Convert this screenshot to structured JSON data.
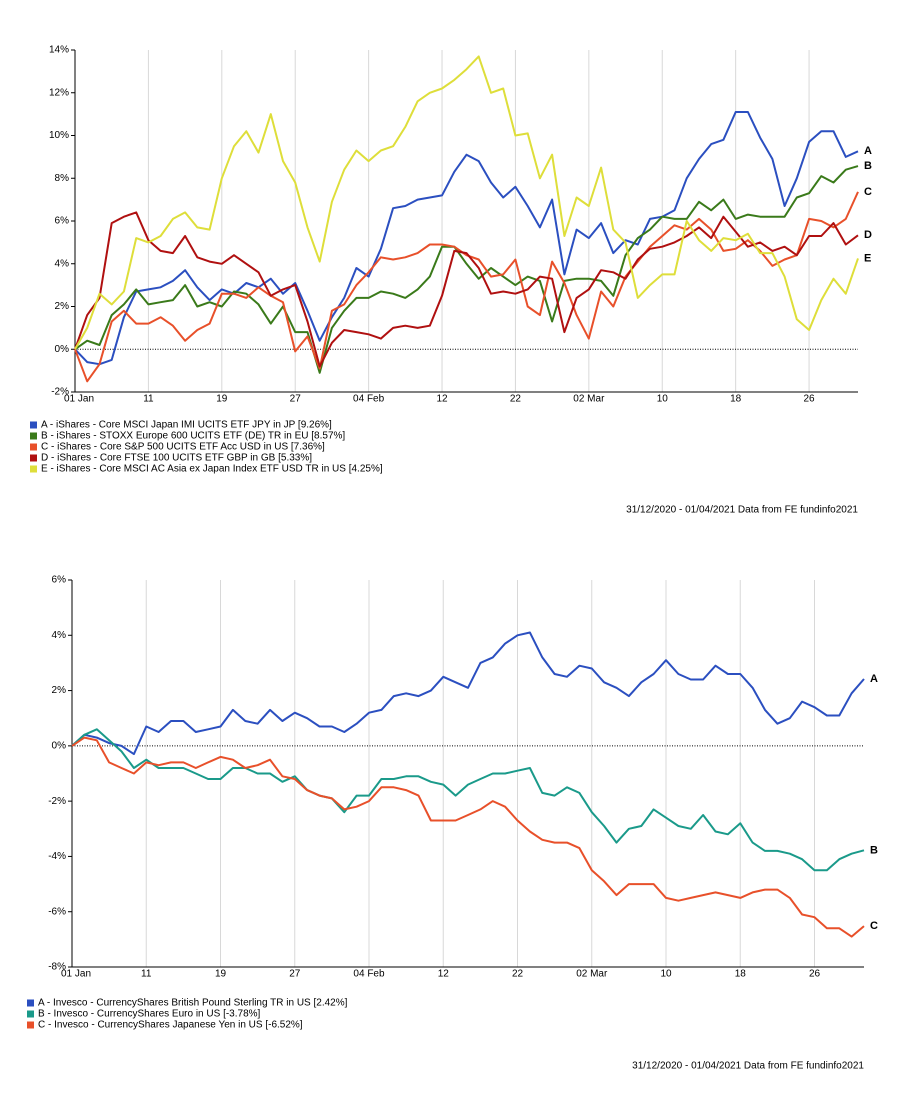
{
  "chart_data": [
    {
      "type": "line",
      "categories": [
        "01 Jan",
        null,
        null,
        null,
        null,
        null,
        "11",
        null,
        null,
        null,
        null,
        null,
        "19",
        null,
        null,
        null,
        null,
        null,
        "27",
        null,
        null,
        null,
        null,
        null,
        "04 Feb",
        null,
        null,
        null,
        null,
        null,
        "12",
        null,
        null,
        null,
        null,
        null,
        "22",
        null,
        null,
        null,
        null,
        null,
        "02 Mar",
        null,
        null,
        null,
        null,
        null,
        "10",
        null,
        null,
        null,
        null,
        null,
        "18",
        null,
        null,
        null,
        null,
        null,
        "26",
        null,
        null,
        null,
        null
      ],
      "ylim": [
        -2,
        14
      ],
      "yticks": [
        {
          "value": -2,
          "label": "-2%"
        },
        {
          "value": 0,
          "label": "0%"
        },
        {
          "value": 2,
          "label": "2%"
        },
        {
          "value": 4,
          "label": "4%"
        },
        {
          "value": 6,
          "label": "6%"
        },
        {
          "value": 8,
          "label": "8%"
        },
        {
          "value": 10,
          "label": "10%"
        },
        {
          "value": 12,
          "label": "12%"
        },
        {
          "value": 14,
          "label": "14%"
        }
      ],
      "grid": "x",
      "zero_line": true,
      "source": "31/12/2020 - 01/04/2021 Data from FE fundinfo2021",
      "series": [
        {
          "name": "A - iShares - Core MSCI Japan IMI UCITS ETF JPY in JP [9.26%]",
          "end_label": "A",
          "color": "#2b4fc0",
          "values": [
            0,
            -0.6,
            -0.7,
            -0.5,
            1.5,
            2.7,
            2.8,
            2.9,
            3.2,
            3.7,
            2.9,
            2.3,
            2.8,
            2.6,
            3.1,
            2.9,
            3.3,
            2.6,
            3.1,
            1.8,
            0.4,
            1.5,
            2.4,
            3.8,
            3.4,
            4.7,
            6.6,
            6.7,
            7.0,
            7.1,
            7.2,
            8.3,
            9.1,
            8.8,
            7.8,
            7.1,
            7.6,
            6.7,
            5.7,
            7.0,
            3.5,
            5.6,
            5.2,
            5.9,
            4.5,
            5.1,
            4.9,
            6.1,
            6.2,
            6.5,
            8.0,
            8.9,
            9.6,
            9.8,
            11.1,
            11.1,
            9.9,
            8.9,
            6.7,
            8.0,
            9.7,
            10.2,
            10.2,
            9.0,
            9.26
          ]
        },
        {
          "name": "B - iShares - STOXX Europe 600 UCITS ETF (DE) TR in EU [8.57%]",
          "end_label": "B",
          "color": "#3a7a1a",
          "values": [
            0,
            0.4,
            0.2,
            1.6,
            2.1,
            2.8,
            2.1,
            2.2,
            2.3,
            3.0,
            2.0,
            2.2,
            2.0,
            2.7,
            2.6,
            2.1,
            1.2,
            2.0,
            0.8,
            0.8,
            -1.1,
            1.0,
            1.8,
            2.4,
            2.4,
            2.7,
            2.6,
            2.4,
            2.8,
            3.4,
            4.8,
            4.8,
            4.0,
            3.3,
            3.8,
            3.4,
            3.0,
            3.4,
            3.2,
            1.3,
            3.2,
            3.3,
            3.3,
            3.2,
            2.5,
            4.4,
            5.2,
            5.6,
            6.2,
            6.1,
            6.1,
            6.9,
            6.5,
            7.0,
            6.1,
            6.3,
            6.2,
            6.2,
            6.2,
            7.1,
            7.3,
            8.1,
            7.8,
            8.4,
            8.57
          ]
        },
        {
          "name": "C - iShares - Core S&P 500 UCITS ETF Acc USD in US [7.36%]",
          "end_label": "C",
          "color": "#e8502a",
          "values": [
            0,
            -1.5,
            -0.7,
            1.3,
            1.8,
            1.2,
            1.2,
            1.5,
            1.1,
            0.4,
            0.9,
            1.2,
            2.6,
            2.6,
            2.4,
            2.9,
            2.5,
            2.2,
            -0.1,
            0.6,
            -0.9,
            1.8,
            2.1,
            3.0,
            3.6,
            4.3,
            4.2,
            4.3,
            4.5,
            4.9,
            4.9,
            4.8,
            4.4,
            4.2,
            3.4,
            3.5,
            4.2,
            2.0,
            1.6,
            4.1,
            3.1,
            1.6,
            0.5,
            2.7,
            2.0,
            3.4,
            4.1,
            4.8,
            5.3,
            5.8,
            5.6,
            6.1,
            5.6,
            4.6,
            4.7,
            5.1,
            4.6,
            3.9,
            4.2,
            4.4,
            6.1,
            6.0,
            5.7,
            6.1,
            7.36
          ]
        },
        {
          "name": "D - iShares - Core FTSE 100 UCITS ETF GBP in GB [5.33%]",
          "end_label": "D",
          "color": "#b01010",
          "values": [
            0,
            1.6,
            2.4,
            5.9,
            6.2,
            6.4,
            5.1,
            4.6,
            4.5,
            5.3,
            4.3,
            4.1,
            4.0,
            4.4,
            4.0,
            3.6,
            2.5,
            2.8,
            3.0,
            1.3,
            -0.8,
            0.3,
            0.9,
            0.8,
            0.7,
            0.5,
            1.0,
            1.1,
            1.0,
            1.1,
            2.5,
            4.6,
            4.5,
            3.8,
            2.6,
            2.7,
            2.6,
            2.8,
            3.4,
            3.3,
            0.8,
            2.4,
            2.8,
            3.7,
            3.6,
            3.3,
            4.2,
            4.7,
            4.8,
            5.0,
            5.3,
            5.7,
            5.2,
            6.2,
            5.5,
            4.8,
            5.0,
            4.6,
            4.8,
            4.4,
            5.3,
            5.3,
            5.9,
            4.9,
            5.33
          ]
        },
        {
          "name": "E - iShares - Core MSCI AC Asia ex Japan Index ETF USD TR in US [4.25%]",
          "end_label": "E",
          "color": "#dede3a",
          "values": [
            0,
            1.0,
            2.6,
            2.1,
            2.7,
            5.2,
            5.0,
            5.3,
            6.1,
            6.4,
            5.7,
            5.6,
            8.0,
            9.5,
            10.2,
            9.2,
            11.0,
            8.8,
            7.8,
            5.7,
            4.1,
            6.9,
            8.4,
            9.3,
            8.8,
            9.3,
            9.5,
            10.4,
            11.6,
            12.0,
            12.2,
            12.6,
            13.1,
            13.7,
            12.0,
            12.2,
            10.0,
            10.1,
            8.0,
            9.1,
            5.3,
            7.1,
            6.7,
            8.5,
            5.6,
            5.0,
            2.4,
            3.0,
            3.5,
            3.5,
            6.0,
            5.1,
            4.6,
            5.2,
            5.1,
            5.4,
            4.5,
            4.5,
            3.4,
            1.4,
            0.9,
            2.3,
            3.3,
            2.6,
            4.25
          ]
        }
      ]
    },
    {
      "type": "line",
      "categories": [
        "01 Jan",
        null,
        null,
        null,
        null,
        null,
        "11",
        null,
        null,
        null,
        null,
        null,
        "19",
        null,
        null,
        null,
        null,
        null,
        "27",
        null,
        null,
        null,
        null,
        null,
        "04 Feb",
        null,
        null,
        null,
        null,
        null,
        "12",
        null,
        null,
        null,
        null,
        null,
        "22",
        null,
        null,
        null,
        null,
        null,
        "02 Mar",
        null,
        null,
        null,
        null,
        null,
        "10",
        null,
        null,
        null,
        null,
        null,
        "18",
        null,
        null,
        null,
        null,
        null,
        "26",
        null,
        null,
        null,
        null
      ],
      "ylim": [
        -8,
        6
      ],
      "yticks": [
        {
          "value": -8,
          "label": "-8%"
        },
        {
          "value": -6,
          "label": "-6%"
        },
        {
          "value": -4,
          "label": "-4%"
        },
        {
          "value": -2,
          "label": "-2%"
        },
        {
          "value": 0,
          "label": "0%"
        },
        {
          "value": 2,
          "label": "2%"
        },
        {
          "value": 4,
          "label": "4%"
        },
        {
          "value": 6,
          "label": "6%"
        }
      ],
      "grid": "x",
      "zero_line": true,
      "source": "31/12/2020 - 01/04/2021 Data from FE fundinfo2021",
      "series": [
        {
          "name": "A - Invesco - CurrencyShares British Pound Sterling TR in US [2.42%]",
          "end_label": "A",
          "color": "#2b4fc0",
          "values": [
            0,
            0.4,
            0.3,
            0.1,
            0.0,
            -0.3,
            0.7,
            0.5,
            0.9,
            0.9,
            0.5,
            0.6,
            0.7,
            1.3,
            0.9,
            0.8,
            1.3,
            0.9,
            1.2,
            1.0,
            0.7,
            0.7,
            0.5,
            0.8,
            1.2,
            1.3,
            1.8,
            1.9,
            1.8,
            2.0,
            2.5,
            2.3,
            2.1,
            3.0,
            3.2,
            3.7,
            4.0,
            4.1,
            3.2,
            2.6,
            2.5,
            2.9,
            2.8,
            2.3,
            2.1,
            1.8,
            2.3,
            2.6,
            3.1,
            2.6,
            2.4,
            2.4,
            2.9,
            2.6,
            2.6,
            2.1,
            1.3,
            0.8,
            1.0,
            1.6,
            1.4,
            1.1,
            1.1,
            1.9,
            2.42
          ]
        },
        {
          "name": "B - Invesco - CurrencyShares Euro in US [-3.78%]",
          "end_label": "B",
          "color": "#1a9a8a",
          "values": [
            0,
            0.4,
            0.6,
            0.2,
            -0.2,
            -0.8,
            -0.5,
            -0.8,
            -0.8,
            -0.8,
            -1.0,
            -1.2,
            -1.2,
            -0.8,
            -0.8,
            -1.0,
            -1.0,
            -1.3,
            -1.1,
            -1.6,
            -1.8,
            -1.9,
            -2.4,
            -1.8,
            -1.8,
            -1.2,
            -1.2,
            -1.1,
            -1.1,
            -1.3,
            -1.4,
            -1.8,
            -1.4,
            -1.2,
            -1.0,
            -1.0,
            -0.9,
            -0.8,
            -1.7,
            -1.8,
            -1.5,
            -1.7,
            -2.4,
            -2.9,
            -3.5,
            -3.0,
            -2.9,
            -2.3,
            -2.6,
            -2.9,
            -3.0,
            -2.5,
            -3.1,
            -3.2,
            -2.8,
            -3.5,
            -3.8,
            -3.8,
            -3.9,
            -4.1,
            -4.5,
            -4.5,
            -4.1,
            -3.9,
            -3.78
          ]
        },
        {
          "name": "C - Invesco - CurrencyShares Japanese Yen in US [-6.52%]",
          "end_label": "C",
          "color": "#e8502a",
          "values": [
            0,
            0.3,
            0.2,
            -0.6,
            -0.8,
            -1.0,
            -0.6,
            -0.7,
            -0.6,
            -0.6,
            -0.8,
            -0.6,
            -0.4,
            -0.5,
            -0.8,
            -0.7,
            -0.5,
            -1.1,
            -1.2,
            -1.6,
            -1.8,
            -1.9,
            -2.3,
            -2.2,
            -2.0,
            -1.5,
            -1.5,
            -1.6,
            -1.8,
            -2.7,
            -2.7,
            -2.7,
            -2.5,
            -2.3,
            -2.0,
            -2.2,
            -2.7,
            -3.1,
            -3.4,
            -3.5,
            -3.5,
            -3.7,
            -4.5,
            -4.9,
            -5.4,
            -5.0,
            -5.0,
            -5.0,
            -5.5,
            -5.6,
            -5.5,
            -5.4,
            -5.3,
            -5.4,
            -5.5,
            -5.3,
            -5.2,
            -5.2,
            -5.5,
            -6.1,
            -6.2,
            -6.6,
            -6.6,
            -6.9,
            -6.52
          ]
        }
      ]
    }
  ]
}
